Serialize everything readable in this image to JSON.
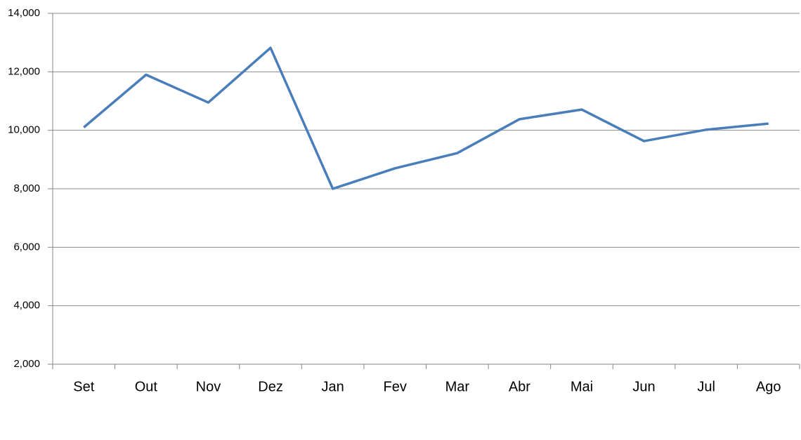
{
  "chart_data": {
    "type": "line",
    "categories": [
      "Set",
      "Out",
      "Nov",
      "Dez",
      "Jan",
      "Fev",
      "Mar",
      "Abr",
      "Mai",
      "Jun",
      "Jul",
      "Ago"
    ],
    "values": [
      10100,
      11900,
      10950,
      12820,
      8000,
      8700,
      9220,
      10380,
      10710,
      9630,
      10020,
      10230
    ],
    "color": "#4a7ebb",
    "ylim": [
      2000,
      14000
    ],
    "yticks": [
      {
        "value": 2000,
        "label": "2,000"
      },
      {
        "value": 4000,
        "label": "4,000"
      },
      {
        "value": 6000,
        "label": "6,000"
      },
      {
        "value": 8000,
        "label": "8,000"
      },
      {
        "value": 10000,
        "label": "10,000"
      },
      {
        "value": 12000,
        "label": "12,000"
      },
      {
        "value": 14000,
        "label": "14,000"
      }
    ],
    "grid": true
  }
}
